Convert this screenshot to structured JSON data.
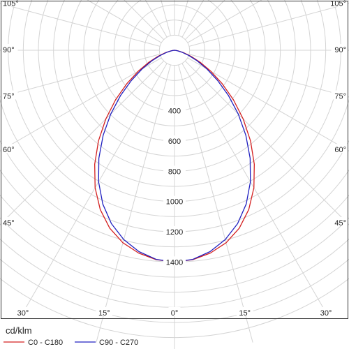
{
  "chart_data": {
    "type": "polar",
    "unit_label": "cd/klm",
    "radial_axis": {
      "max": 1500,
      "ticks": [
        400,
        600,
        800,
        1000,
        1200,
        1400
      ],
      "tick_labels": [
        "400",
        "600",
        "800",
        "1000",
        "1200",
        "1400"
      ]
    },
    "angle_axis": {
      "zero_direction": "down",
      "left_labels": [
        "105°",
        "90°",
        "75°",
        "60°",
        "45°",
        "30°",
        "15°",
        "0°"
      ],
      "right_labels": [
        "105°",
        "90°",
        "75°",
        "60°",
        "45°",
        "30°",
        "15°"
      ],
      "side_angles": [
        105,
        90,
        75,
        60,
        45,
        30
      ],
      "bottom_angles": [
        30,
        15,
        0,
        15,
        30
      ]
    },
    "grid": true,
    "legend_position": "bottom-left",
    "series": [
      {
        "name": "C0 - C180",
        "color": "#d42020",
        "angles": [
          0,
          5,
          10,
          15,
          20,
          25,
          30,
          35,
          40,
          45,
          50,
          55,
          60,
          65,
          70,
          75,
          80,
          85,
          90
        ],
        "values": [
          1400,
          1390,
          1362,
          1318,
          1252,
          1162,
          1050,
          920,
          782,
          642,
          508,
          384,
          276,
          186,
          114,
          62,
          26,
          8,
          0
        ]
      },
      {
        "name": "C90 - C270",
        "color": "#2020c0",
        "angles": [
          0,
          5,
          10,
          15,
          20,
          25,
          30,
          35,
          40,
          45,
          50,
          55,
          60,
          65,
          70,
          75,
          80,
          85,
          90
        ],
        "values": [
          1400,
          1388,
          1352,
          1296,
          1220,
          1122,
          1004,
          872,
          734,
          596,
          466,
          348,
          248,
          166,
          100,
          54,
          22,
          6,
          0
        ]
      }
    ]
  }
}
